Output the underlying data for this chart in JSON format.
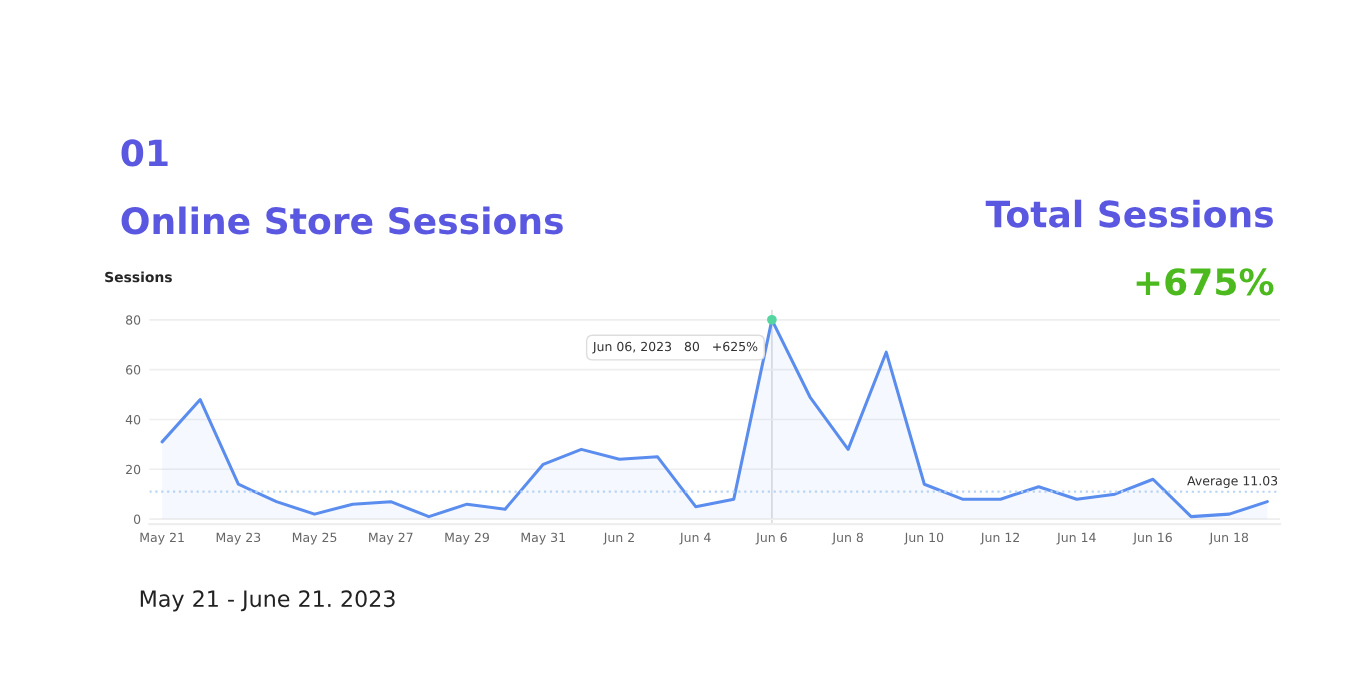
{
  "chart_data": {
    "type": "area",
    "title": "Online Store Sessions",
    "ylabel": "Sessions",
    "annotations": [
      "01",
      "Total Sessions",
      "+675%",
      "May 21 - June 21. 2023",
      {
        "text": "Jun 06, 2023   80   +625%",
        "x": "2023-06-06",
        "y": 80
      }
    ],
    "x": [
      "2023-05-21",
      "2023-05-22",
      "2023-05-23",
      "2023-05-24",
      "2023-05-25",
      "2023-05-26",
      "2023-05-27",
      "2023-05-28",
      "2023-05-29",
      "2023-05-30",
      "2023-05-31",
      "2023-06-01",
      "2023-06-02",
      "2023-06-03",
      "2023-06-04",
      "2023-06-05",
      "2023-06-06",
      "2023-06-07",
      "2023-06-08",
      "2023-06-09",
      "2023-06-10",
      "2023-06-11",
      "2023-06-12",
      "2023-06-13",
      "2023-06-14",
      "2023-06-15",
      "2023-06-16",
      "2023-06-17",
      "2023-06-18",
      "2023-06-19"
    ],
    "series": [
      {
        "color": "#5b8def",
        "values": [
          31,
          48,
          14,
          7,
          2,
          6,
          7,
          1,
          6,
          4,
          22,
          28,
          24,
          25,
          5,
          8,
          80,
          49,
          28,
          67,
          14,
          8,
          8,
          13,
          8,
          10,
          16,
          1,
          2,
          7
        ]
      }
    ],
    "xlim": [
      "2023-05-20T16:00",
      "2023-06-19T08:00"
    ],
    "xticks": [
      {
        "value": "2023-05-21",
        "label": "May 21"
      },
      {
        "value": "2023-05-23",
        "label": "May 23"
      },
      {
        "value": "2023-05-25",
        "label": "May 25"
      },
      {
        "value": "2023-05-27",
        "label": "May 27"
      },
      {
        "value": "2023-05-29",
        "label": "May 29"
      },
      {
        "value": "2023-05-31",
        "label": "May 31"
      },
      {
        "value": "2023-06-02",
        "label": "Jun 2"
      },
      {
        "value": "2023-06-04",
        "label": "Jun 4"
      },
      {
        "value": "2023-06-06",
        "label": "Jun 6"
      },
      {
        "value": "2023-06-08",
        "label": "Jun 8"
      },
      {
        "value": "2023-06-10",
        "label": "Jun 10"
      },
      {
        "value": "2023-06-12",
        "label": "Jun 12"
      },
      {
        "value": "2023-06-14",
        "label": "Jun 14"
      },
      {
        "value": "2023-06-16",
        "label": "Jun 16"
      },
      {
        "value": "2023-06-18",
        "label": "Jun 18"
      }
    ],
    "ylim": [
      -2,
      84
    ],
    "yticks": [
      0,
      20,
      40,
      60,
      80
    ],
    "ref_lines": [
      {
        "axis": "y",
        "value": 11.03,
        "label": "Average 11.03",
        "color": "#b8d4f5",
        "line_style": "dotted"
      },
      {
        "axis": "x",
        "value": "2023-06-06",
        "color": "#dddddd",
        "line_style": "solid"
      }
    ],
    "grid": "y",
    "legend": false,
    "line_style": "solid",
    "marker": "none"
  }
}
